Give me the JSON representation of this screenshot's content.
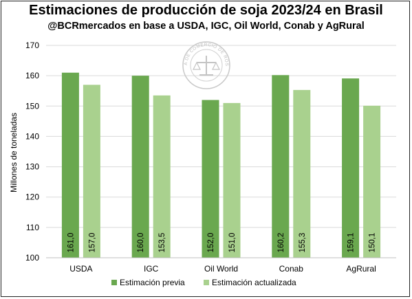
{
  "chart_data": {
    "type": "bar",
    "title": "Estimaciones de producción de soja 2023/24 en Brasil",
    "subtitle": "@BCRmercados en base a USDA, IGC, Oil World, Conab y AgRural",
    "ylabel": "Millones de toneladas",
    "ylim": [
      100,
      170
    ],
    "yticks": [
      100,
      110,
      120,
      130,
      140,
      150,
      160,
      170
    ],
    "grid": true,
    "legend_position": "bottom",
    "categories": [
      "USDA",
      "IGC",
      "Oil World",
      "Conab",
      "AgRural"
    ],
    "series": [
      {
        "name": "Estimación previa",
        "color": "#6aa84f",
        "values": [
          161.0,
          160.0,
          152.0,
          160.2,
          159.1
        ],
        "labels": [
          "161,0",
          "160,0",
          "152,0",
          "160,2",
          "159,1"
        ]
      },
      {
        "name": "Estimación actualizada",
        "color": "#a9d18e",
        "values": [
          157.0,
          153.5,
          151.0,
          155.3,
          150.1
        ],
        "labels": [
          "157,0",
          "153,5",
          "151,0",
          "155,3",
          "150,1"
        ]
      }
    ]
  },
  "watermark": {
    "text": "BOLSA DE COMERCIO DE ROSARIO"
  }
}
